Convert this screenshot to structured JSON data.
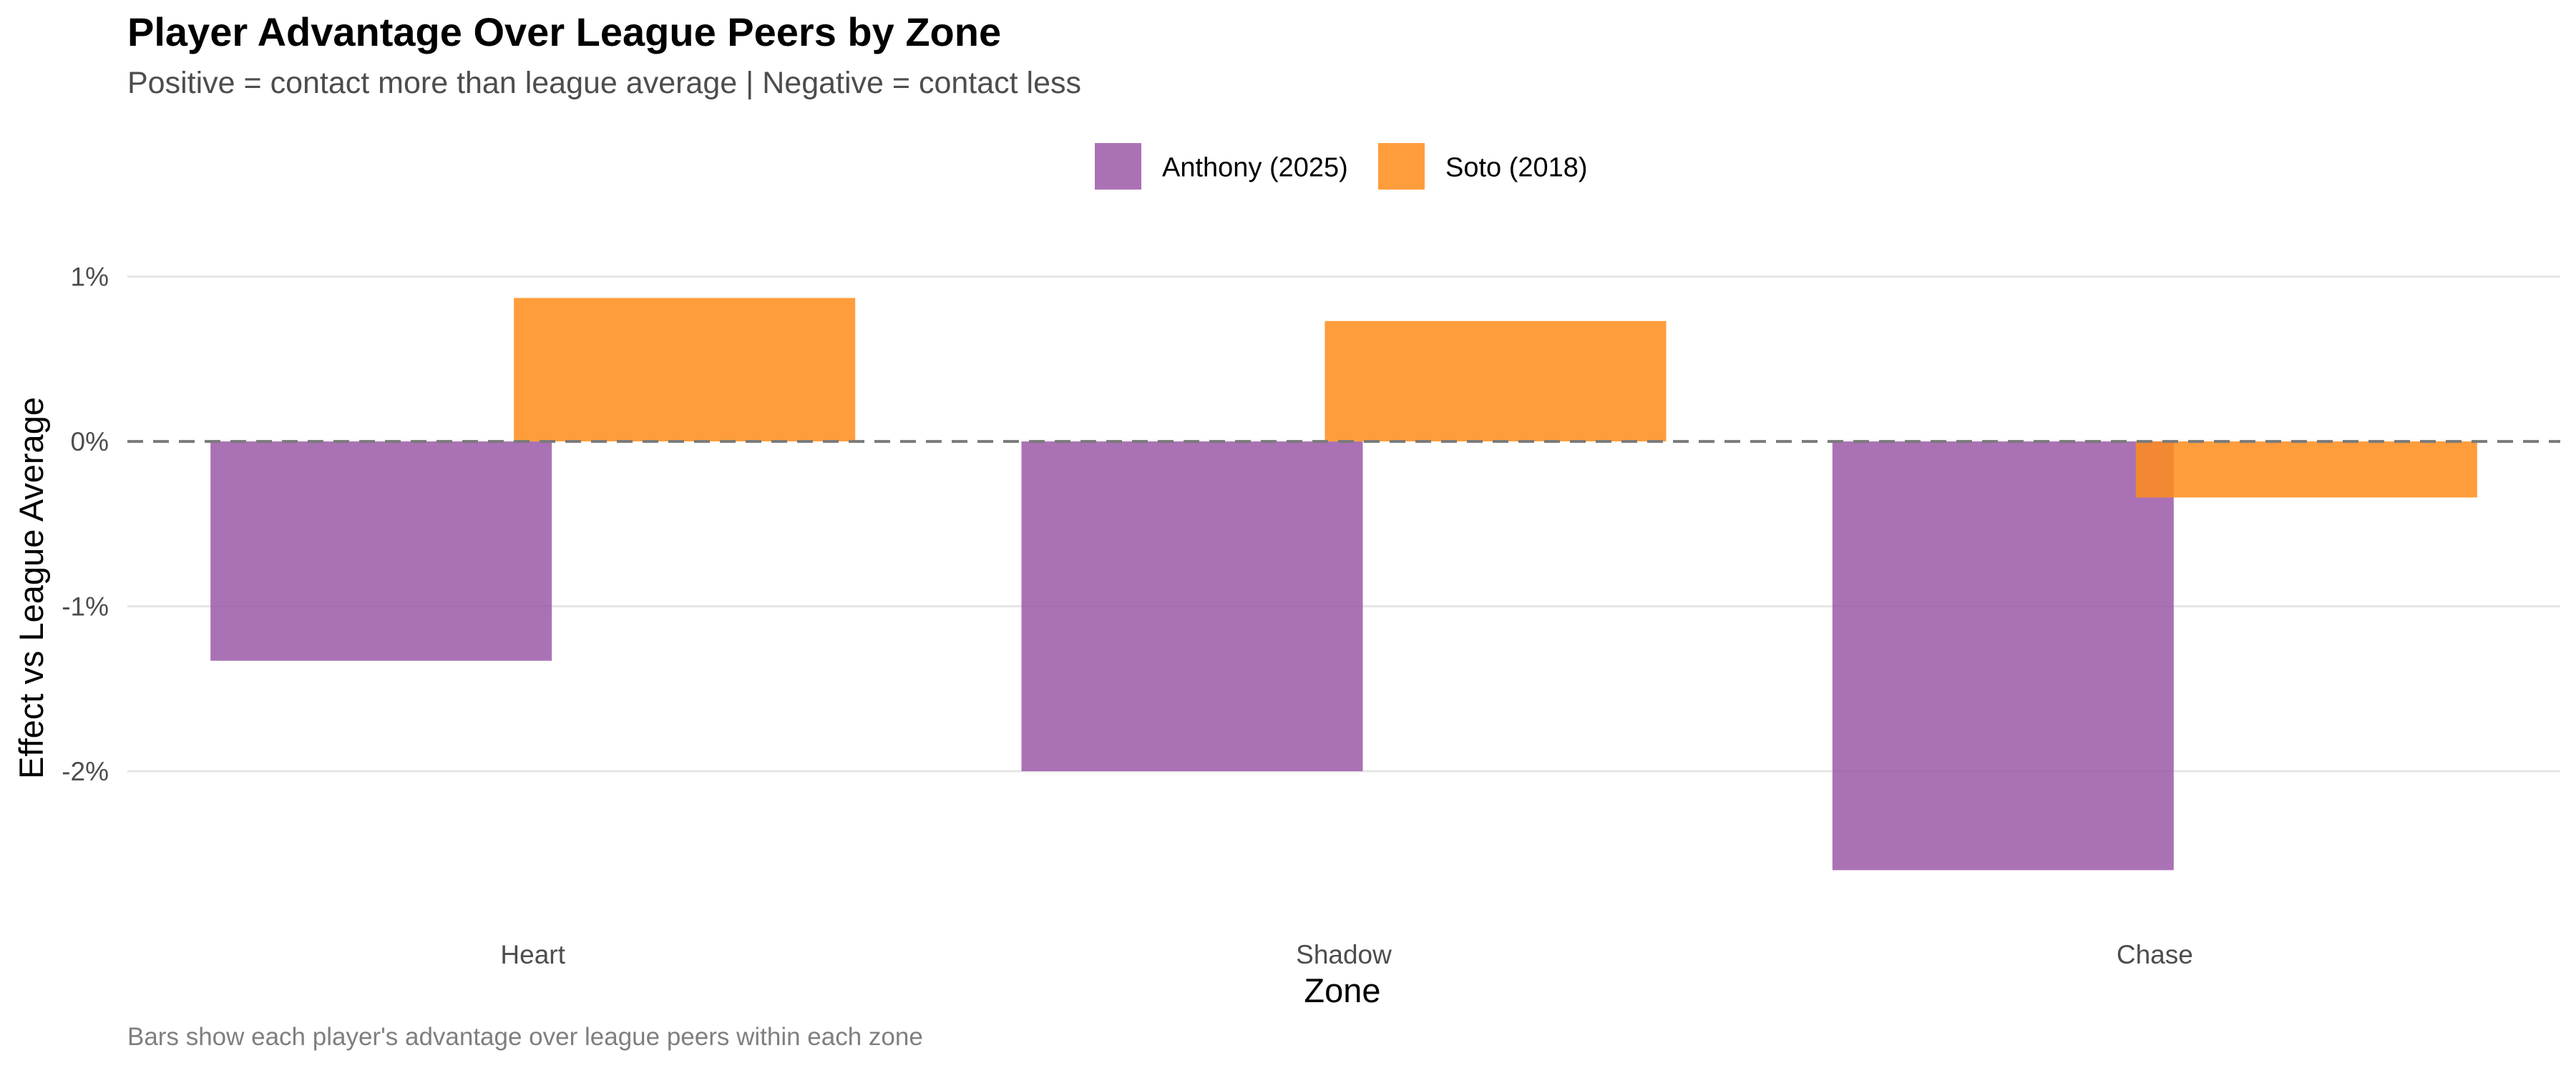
{
  "chart_data": {
    "type": "bar",
    "title": "Player Advantage Over League Peers by Zone",
    "subtitle": "Positive = contact more than league average | Negative = contact less",
    "caption": "Bars show each player's advantage over league peers within each zone",
    "xlabel": "Zone",
    "ylabel": "Effect vs League Average",
    "categories": [
      "Heart",
      "Shadow",
      "Chase"
    ],
    "series": [
      {
        "name": "Anthony (2025)",
        "color": "#9b59a8",
        "values": [
          -1.33,
          -2.0,
          -2.6
        ]
      },
      {
        "name": "Soto (2018)",
        "color": "#ff8c1a",
        "values": [
          0.87,
          0.73,
          -0.34
        ]
      }
    ],
    "yticks": [
      1,
      0,
      -1,
      -2
    ],
    "ytick_labels": [
      "1%",
      "0%",
      "-1%",
      "-2%"
    ],
    "ylim": [
      -2.75,
      1.15
    ],
    "reference_line": {
      "value": 0,
      "style": "dashed"
    },
    "legend_position": "top-center",
    "grid": "horizontal"
  }
}
